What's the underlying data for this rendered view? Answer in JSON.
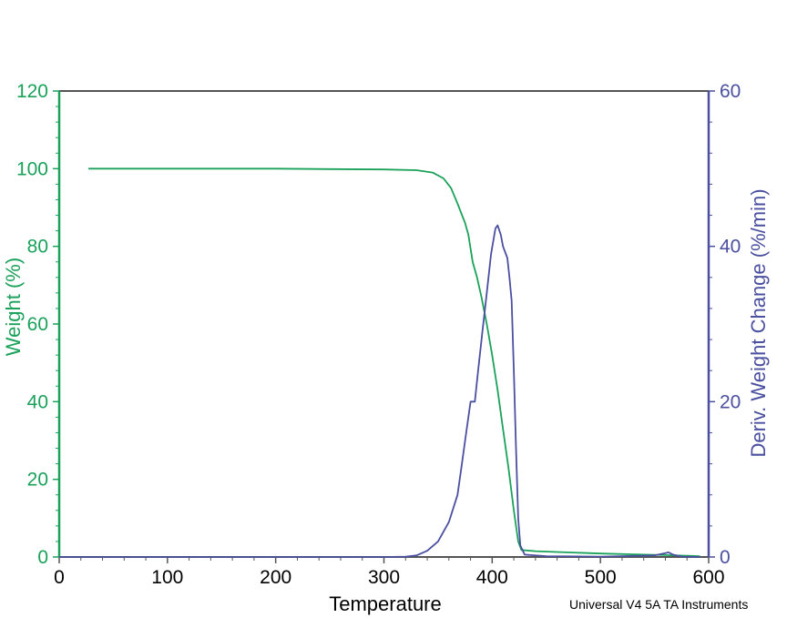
{
  "chart_data": {
    "type": "line",
    "title": "",
    "xlabel": "Temperature",
    "xlim": [
      0,
      600
    ],
    "xticks": [
      "0",
      "100",
      "200",
      "300",
      "400",
      "500",
      "600"
    ],
    "y_left": {
      "label": "Weight (%)",
      "lim": [
        0,
        120
      ],
      "ticks": [
        "0",
        "20",
        "40",
        "60",
        "80",
        "100",
        "120"
      ],
      "color": "#1aa15a"
    },
    "y_right": {
      "label": "Deriv. Weight Change (%/min)",
      "lim": [
        0,
        60
      ],
      "ticks": [
        "0",
        "20",
        "40",
        "60"
      ],
      "color": "#4a4fa0"
    },
    "series": [
      {
        "axis": "left",
        "color": "#1aa15a",
        "points": [
          [
            27,
            100
          ],
          [
            100,
            100
          ],
          [
            200,
            100
          ],
          [
            250,
            99.9
          ],
          [
            300,
            99.8
          ],
          [
            330,
            99.6
          ],
          [
            345,
            99.0
          ],
          [
            355,
            97.5
          ],
          [
            362,
            95
          ],
          [
            368,
            91
          ],
          [
            375,
            86
          ],
          [
            378,
            83
          ],
          [
            382,
            76
          ],
          [
            386,
            72
          ],
          [
            390,
            67
          ],
          [
            395,
            60
          ],
          [
            400,
            52
          ],
          [
            405,
            43
          ],
          [
            410,
            33
          ],
          [
            415,
            23
          ],
          [
            420,
            12
          ],
          [
            424,
            4
          ],
          [
            427,
            1.8
          ],
          [
            440,
            1.5
          ],
          [
            460,
            1.3
          ],
          [
            500,
            0.9
          ],
          [
            540,
            0.6
          ],
          [
            560,
            0.5
          ],
          [
            580,
            0.3
          ],
          [
            592,
            0.2
          ]
        ]
      },
      {
        "axis": "right",
        "color": "#4a4fa0",
        "points": [
          [
            0,
            0
          ],
          [
            100,
            0
          ],
          [
            200,
            0
          ],
          [
            300,
            0
          ],
          [
            320,
            0.05
          ],
          [
            330,
            0.2
          ],
          [
            340,
            0.8
          ],
          [
            350,
            2
          ],
          [
            360,
            4.5
          ],
          [
            368,
            8
          ],
          [
            372,
            12
          ],
          [
            376,
            16
          ],
          [
            380,
            20
          ],
          [
            384,
            20
          ],
          [
            387,
            24
          ],
          [
            391,
            29
          ],
          [
            395,
            34
          ],
          [
            399,
            39
          ],
          [
            403,
            42.3
          ],
          [
            405,
            42.7
          ],
          [
            408,
            41.5
          ],
          [
            410,
            40
          ],
          [
            414,
            38.5
          ],
          [
            416,
            36
          ],
          [
            418,
            33
          ],
          [
            420,
            24
          ],
          [
            422,
            14
          ],
          [
            424,
            5
          ],
          [
            426,
            1.5
          ],
          [
            430,
            0.3
          ],
          [
            450,
            0.1
          ],
          [
            500,
            0.05
          ],
          [
            550,
            0.2
          ],
          [
            560,
            0.5
          ],
          [
            563,
            0.6
          ],
          [
            567,
            0.3
          ],
          [
            575,
            0.05
          ],
          [
            592,
            0
          ]
        ]
      }
    ],
    "footer": "Universal V4 5A TA Instruments"
  }
}
